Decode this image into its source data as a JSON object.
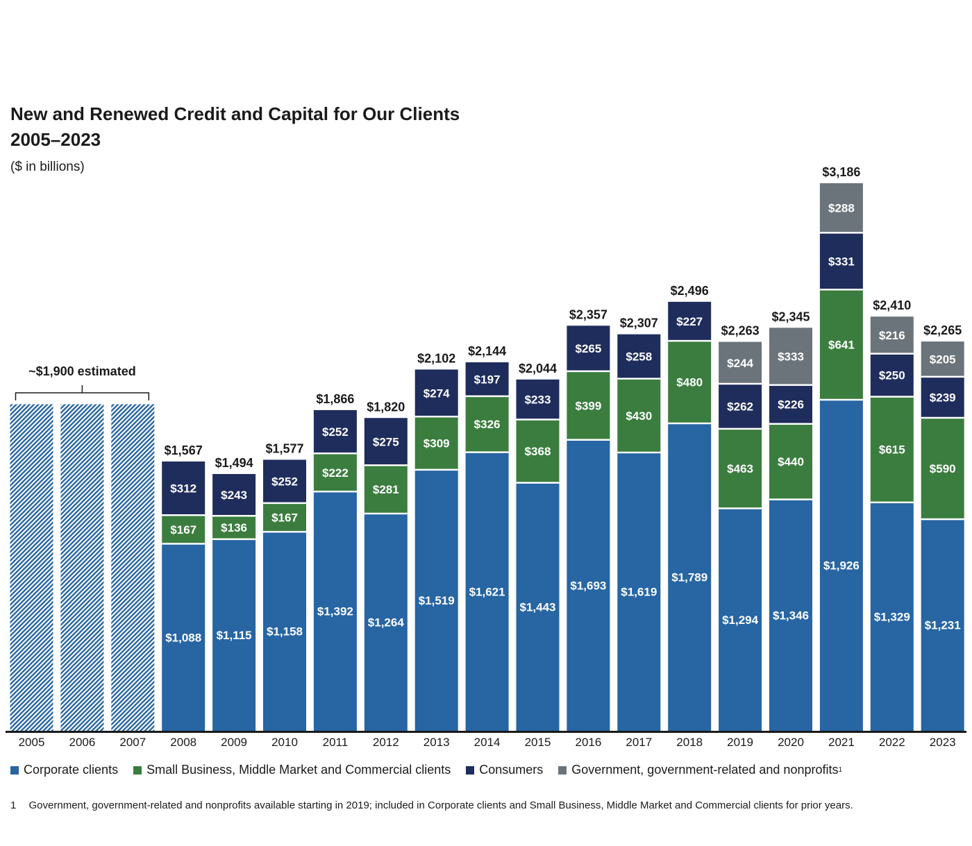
{
  "header": {
    "title_line1": "New and Renewed Credit and Capital for Our Clients",
    "title_line2": "2005–2023",
    "unit": "($ in billions)"
  },
  "colors": {
    "corporate": "#2765a3",
    "small_business": "#3b7d3f",
    "consumers": "#1f2d5c",
    "government": "#6b747b",
    "hatch": "#2765a3",
    "axis": "#1a1a1a"
  },
  "legend": [
    {
      "key": "corporate",
      "label": "Corporate clients",
      "sup": ""
    },
    {
      "key": "small_business",
      "label": "Small Business, Middle Market and Commercial clients",
      "sup": ""
    },
    {
      "key": "consumers",
      "label": "Consumers",
      "sup": ""
    },
    {
      "key": "government",
      "label": "Government, government-related and nonprofits",
      "sup": "1"
    }
  ],
  "footnote": {
    "number": "1",
    "text": "Government, government-related and nonprofits available starting in 2019; included in Corporate clients and Small Business, Middle Market and Commercial clients for prior years."
  },
  "chart_data": {
    "type": "bar",
    "stacked": true,
    "categories": [
      "2005",
      "2006",
      "2007",
      "2008",
      "2009",
      "2010",
      "2011",
      "2012",
      "2013",
      "2014",
      "2015",
      "2016",
      "2017",
      "2018",
      "2019",
      "2020",
      "2021",
      "2022",
      "2023"
    ],
    "series": [
      {
        "name": "Corporate clients",
        "key": "corporate",
        "values": [
          null,
          null,
          null,
          1088,
          1115,
          1158,
          1392,
          1264,
          1519,
          1621,
          1443,
          1693,
          1619,
          1789,
          1294,
          1346,
          1926,
          1329,
          1231
        ],
        "labels": [
          "",
          "",
          "",
          "$1,088",
          "$1,115",
          "$1,158",
          "$1,392",
          "$1,264",
          "$1,519",
          "$1,621",
          "$1,443",
          "$1,693",
          "$1,619",
          "$1,789",
          "$1,294",
          "$1,346",
          "$1,926",
          "$1,329",
          "$1,231"
        ]
      },
      {
        "name": "Small Business, Middle Market and Commercial clients",
        "key": "small_business",
        "values": [
          null,
          null,
          null,
          167,
          136,
          167,
          222,
          281,
          309,
          326,
          368,
          399,
          430,
          480,
          463,
          440,
          641,
          615,
          590
        ],
        "labels": [
          "",
          "",
          "",
          "$167",
          "$136",
          "$167",
          "$222",
          "$281",
          "$309",
          "$326",
          "$368",
          "$399",
          "$430",
          "$480",
          "$463",
          "$440",
          "$641",
          "$615",
          "$590"
        ]
      },
      {
        "name": "Consumers",
        "key": "consumers",
        "values": [
          null,
          null,
          null,
          312,
          243,
          252,
          252,
          275,
          274,
          197,
          233,
          265,
          258,
          227,
          262,
          226,
          331,
          250,
          239
        ],
        "labels": [
          "",
          "",
          "",
          "$312",
          "$243",
          "$252",
          "$252",
          "$275",
          "$274",
          "$197",
          "$233",
          "$265",
          "$258",
          "$227",
          "$262",
          "$226",
          "$331",
          "$250",
          "$239"
        ]
      },
      {
        "name": "Government, government-related and nonprofits",
        "key": "government",
        "values": [
          null,
          null,
          null,
          null,
          null,
          null,
          null,
          null,
          null,
          null,
          null,
          null,
          null,
          null,
          244,
          333,
          288,
          216,
          205
        ],
        "labels": [
          "",
          "",
          "",
          "",
          "",
          "",
          "",
          "",
          "",
          "",
          "",
          "",
          "",
          "",
          "$244",
          "$333",
          "$288",
          "$216",
          "$205"
        ]
      }
    ],
    "totals": [
      null,
      null,
      null,
      1567,
      1494,
      1577,
      1866,
      1820,
      2102,
      2144,
      2044,
      2357,
      2307,
      2496,
      2263,
      2345,
      3186,
      2410,
      2265
    ],
    "total_labels": [
      "",
      "",
      "",
      "$1,567",
      "$1,494",
      "$1,577",
      "$1,866",
      "$1,820",
      "$2,102",
      "$2,144",
      "$2,044",
      "$2,357",
      "$2,307",
      "$2,496",
      "$2,263",
      "$2,345",
      "$3,186",
      "$2,410",
      "$2,265"
    ],
    "estimate": {
      "years": [
        "2005",
        "2006",
        "2007"
      ],
      "value": 1900,
      "label": "~$1,900 estimated"
    },
    "ylim": [
      0,
      3186
    ],
    "grid": false,
    "legend_position": "bottom"
  }
}
